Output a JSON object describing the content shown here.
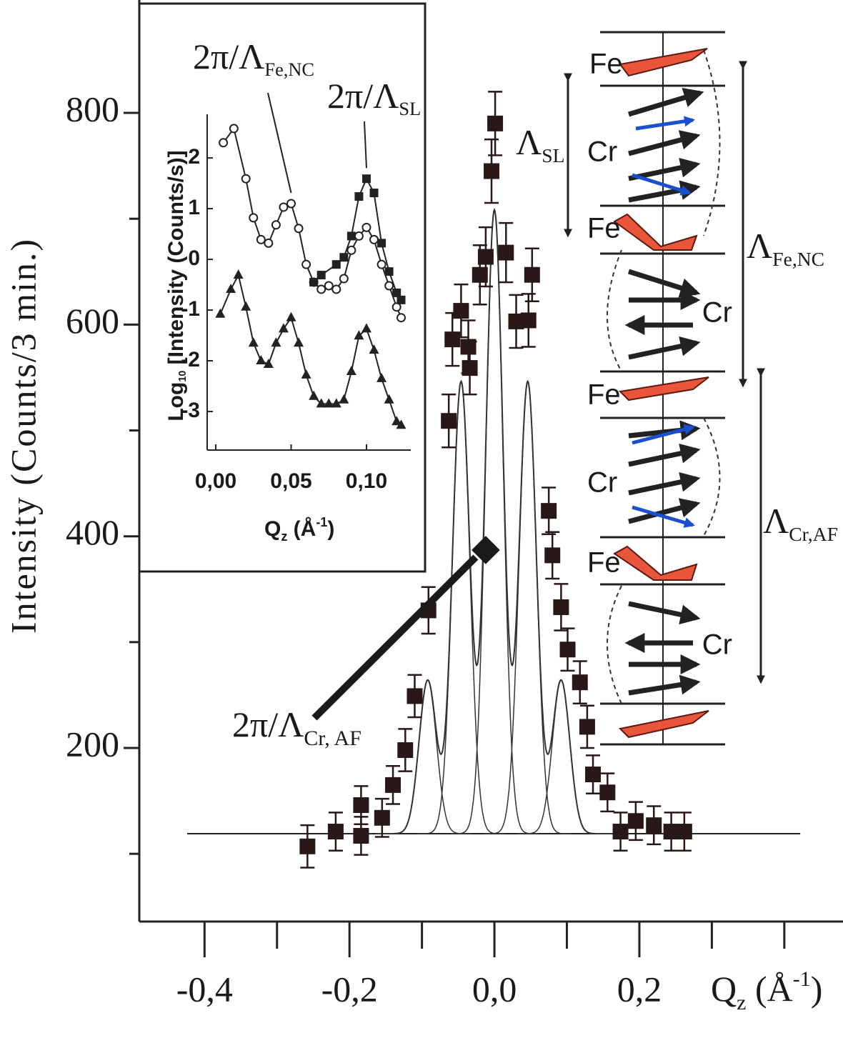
{
  "chart_data": [
    {
      "type": "scatter",
      "ylabel": "Intensity (Counts/3 min.)",
      "xlabel": {
        "text": "Q",
        "sub": "z",
        "unit": " (Å",
        "sup": "-1",
        "close": ")"
      },
      "xlim": [
        -0.49,
        0.48
      ],
      "ylim": [
        36,
        906
      ],
      "xticks": [
        {
          "value": -0.4,
          "label": "-0,4"
        },
        {
          "value": -0.2,
          "label": "-0,2"
        },
        {
          "value": 0.0,
          "label": "0,0"
        },
        {
          "value": 0.2,
          "label": "0,2"
        }
      ],
      "xminor": [
        -0.3,
        -0.1,
        0.1,
        0.3,
        0.4
      ],
      "yticks": [
        200,
        400,
        600,
        800
      ],
      "yminor": [
        100,
        300,
        500,
        700
      ],
      "series": [
        {
          "color": "#2a1818",
          "x": [
            -0.258,
            -0.219,
            -0.184,
            -0.184,
            -0.155,
            -0.14,
            -0.123,
            -0.11,
            -0.091,
            -0.063,
            -0.058,
            -0.046,
            -0.036,
            -0.034,
            -0.02,
            -0.012,
            -0.004,
            0.001,
            0.016,
            0.03,
            0.047,
            0.052,
            0.075,
            0.08,
            0.092,
            0.101,
            0.118,
            0.128,
            0.136,
            0.156,
            0.174,
            0.195,
            0.22,
            0.244,
            0.262
          ],
          "values": [
            107,
            121,
            117,
            146,
            134,
            165,
            198,
            249,
            330,
            509,
            586,
            613,
            579,
            559,
            647,
            664,
            745,
            790,
            668,
            603,
            604,
            647,
            424,
            382,
            333,
            293,
            262,
            220,
            175,
            158,
            121,
            131,
            127,
            121,
            121
          ],
          "yerr": [
            20,
            18,
            18,
            18,
            18,
            18,
            20,
            20,
            22,
            25,
            25,
            25,
            25,
            25,
            28,
            28,
            30,
            30,
            28,
            25,
            25,
            25,
            22,
            22,
            22,
            20,
            20,
            20,
            18,
            18,
            18,
            18,
            18,
            18,
            18
          ]
        }
      ],
      "fit": {
        "baseline": 119,
        "xrange": [
          -0.424,
          0.422
        ],
        "color": "#333333",
        "peaks": [
          {
            "center": -0.092,
            "amplitude": 145,
            "width": 0.012
          },
          {
            "center": -0.046,
            "amplitude": 427,
            "width": 0.012
          },
          {
            "center": 0.0,
            "amplitude": 589,
            "width": 0.012
          },
          {
            "center": 0.046,
            "amplitude": 427,
            "width": 0.012
          },
          {
            "center": 0.092,
            "amplitude": 145,
            "width": 0.012
          }
        ]
      },
      "annotation": {
        "text": "2π/Λ",
        "sub": "Cr, AF",
        "x": -0.012,
        "y": 387
      }
    },
    {
      "type": "line",
      "ylabel": {
        "text": "Log",
        "sub": "10",
        "rest": " [Intensity (Counts/s)]"
      },
      "xlabel": {
        "text": "Q",
        "sub": "z",
        "unit": " (Å",
        "sup": "-1",
        "close": ")"
      },
      "xlim": [
        -0.0057,
        0.1294
      ],
      "ylim": [
        -3.76,
        2.79
      ],
      "xticks": [
        {
          "value": 0.0,
          "label": "0,00"
        },
        {
          "value": 0.05,
          "label": "0,05"
        },
        {
          "value": 0.1,
          "label": "0,10"
        }
      ],
      "yticks": [
        -3,
        -2,
        -1,
        0,
        1,
        2
      ],
      "annotations": [
        {
          "text": "2π/Λ",
          "sub": "Fe,NC",
          "x": 0.05,
          "y": 1.1
        },
        {
          "text": "2π/Λ",
          "sub": "SL",
          "x": 0.1,
          "y": 1.59
        }
      ],
      "series": [
        {
          "marker": "circle-open",
          "color": "#222222",
          "x": [
            0.005,
            0.012,
            0.02,
            0.025,
            0.03,
            0.035,
            0.04,
            0.045,
            0.05,
            0.055,
            0.06,
            0.065,
            0.07,
            0.075,
            0.08,
            0.085,
            0.09,
            0.095,
            0.1,
            0.105,
            0.11,
            0.115,
            0.12,
            0.123
          ],
          "values": [
            2.3,
            2.58,
            1.59,
            0.82,
            0.39,
            0.32,
            0.68,
            1.03,
            1.1,
            0.61,
            -0.1,
            -0.45,
            -0.59,
            -0.52,
            -0.59,
            -0.38,
            0.18,
            0.46,
            0.63,
            0.39,
            -0.1,
            -0.52,
            -0.94,
            -1.15
          ]
        },
        {
          "marker": "square",
          "color": "#222222",
          "x": [
            0.065,
            0.07,
            0.08,
            0.085,
            0.09,
            0.095,
            0.1,
            0.105,
            0.11,
            0.115,
            0.12,
            0.123
          ],
          "values": [
            -0.45,
            -0.31,
            -0.1,
            0.04,
            0.46,
            1.24,
            1.59,
            1.31,
            0.32,
            -0.24,
            -0.66,
            -0.8
          ]
        },
        {
          "marker": "triangle",
          "color": "#222222",
          "x": [
            0.003,
            0.01,
            0.015,
            0.02,
            0.025,
            0.03,
            0.035,
            0.04,
            0.045,
            0.05,
            0.055,
            0.06,
            0.065,
            0.07,
            0.075,
            0.08,
            0.085,
            0.09,
            0.095,
            0.1,
            0.105,
            0.11,
            0.115,
            0.12,
            0.123
          ],
          "values": [
            -1.08,
            -0.59,
            -0.31,
            -0.94,
            -1.65,
            -2.0,
            -2.07,
            -1.65,
            -1.37,
            -1.15,
            -1.65,
            -2.28,
            -2.7,
            -2.85,
            -2.85,
            -2.85,
            -2.77,
            -2.21,
            -1.51,
            -1.37,
            -1.79,
            -2.35,
            -2.77,
            -3.2,
            -3.27
          ]
        }
      ]
    }
  ],
  "diagram": {
    "layers": [
      "Fe",
      "Cr",
      "Fe",
      "Cr",
      "Fe",
      "Cr",
      "Fe",
      "Cr"
    ],
    "periods": [
      {
        "text": "Λ",
        "sub": "SL"
      },
      {
        "text": "Λ",
        "sub": "Fe,NC"
      },
      {
        "text": "Λ",
        "sub": "Cr,AF"
      }
    ]
  }
}
